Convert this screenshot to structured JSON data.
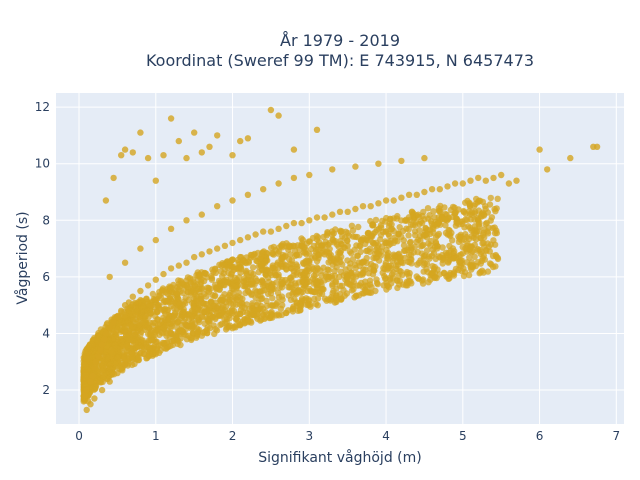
{
  "chart_data": {
    "type": "scatter",
    "title_line1": "År 1979 - 2019",
    "title_line2": "Koordinat (Sweref 99 TM): E 743915, N 6457473",
    "xlabel": "Signifikant våghöjd (m)",
    "ylabel": "Vågperiod (s)",
    "xlim": [
      -0.3,
      7.1
    ],
    "ylim": [
      0.8,
      12.5
    ],
    "x_ticks": [
      0,
      1,
      2,
      3,
      4,
      5,
      6,
      7
    ],
    "y_ticks": [
      2,
      4,
      6,
      8,
      10,
      12
    ],
    "grid": true,
    "marker_color": "#D4A520",
    "plot_bg": "#E5ECF6",
    "series": [
      {
        "x": [
          0.08,
          0.1,
          0.12,
          0.15,
          0.18,
          0.2,
          0.22,
          0.25,
          0.28,
          0.3,
          0.33,
          0.35,
          0.4,
          0.45,
          0.5,
          0.55,
          0.6,
          0.65,
          0.7,
          0.8,
          0.9,
          1.0,
          1.1,
          1.2,
          1.3,
          1.4,
          1.5,
          1.6,
          1.7,
          1.8,
          1.9,
          2.0,
          2.1,
          2.2,
          2.3,
          2.4,
          2.5,
          2.6,
          2.7,
          2.8,
          2.9,
          3.0,
          3.1,
          3.2,
          3.3,
          3.4,
          3.5,
          3.6,
          3.7,
          3.8,
          3.9,
          4.0,
          4.1,
          4.2,
          4.3,
          4.4,
          4.5,
          4.6,
          4.7,
          4.8,
          4.9,
          5.0,
          5.1,
          5.2,
          5.3,
          5.4,
          5.5,
          5.6,
          5.7,
          6.0,
          6.1,
          6.4,
          6.7,
          6.75,
          0.1,
          0.15,
          0.2,
          0.3,
          0.4,
          0.5,
          0.6,
          0.8,
          1.0,
          1.2,
          1.4,
          1.6,
          1.8,
          2.0,
          2.2,
          2.4,
          2.6,
          2.8,
          3.0,
          3.2,
          3.5,
          3.8,
          4.0,
          0.35,
          0.45,
          0.55,
          0.6,
          0.7,
          0.8,
          0.9,
          1.0,
          1.1,
          1.2,
          1.3,
          1.4,
          1.5,
          1.6,
          1.7,
          1.8,
          2.0,
          2.1,
          2.2,
          2.5,
          2.6,
          2.8,
          3.1,
          0.4,
          0.6,
          0.8,
          1.0,
          1.2,
          1.4,
          1.6,
          1.8,
          2.0,
          2.2,
          2.4,
          2.6,
          2.8,
          3.0,
          3.3,
          3.6,
          3.9,
          4.2,
          4.5
        ],
        "y": [
          1.8,
          2.0,
          1.6,
          2.3,
          2.5,
          2.8,
          3.0,
          3.2,
          3.4,
          3.6,
          3.8,
          4.0,
          4.2,
          4.4,
          4.6,
          4.8,
          5.0,
          5.1,
          5.3,
          5.5,
          5.7,
          5.9,
          6.1,
          6.3,
          6.4,
          6.5,
          6.7,
          6.8,
          6.9,
          7.0,
          7.1,
          7.2,
          7.3,
          7.4,
          7.5,
          7.6,
          7.6,
          7.7,
          7.8,
          7.9,
          7.9,
          8.0,
          8.1,
          8.1,
          8.2,
          8.3,
          8.3,
          8.4,
          8.5,
          8.5,
          8.6,
          8.7,
          8.7,
          8.8,
          8.9,
          8.9,
          9.0,
          9.1,
          9.1,
          9.2,
          9.3,
          9.3,
          9.4,
          9.5,
          9.4,
          9.5,
          9.6,
          9.3,
          9.4,
          10.5,
          9.8,
          10.2,
          10.6,
          10.6,
          1.3,
          1.5,
          1.7,
          2.0,
          2.3,
          2.6,
          2.9,
          3.3,
          3.7,
          4.0,
          4.3,
          4.6,
          4.9,
          5.2,
          5.5,
          5.8,
          6.0,
          6.2,
          6.5,
          6.8,
          7.1,
          7.4,
          7.6,
          8.7,
          9.5,
          10.3,
          10.5,
          10.4,
          11.1,
          10.2,
          9.4,
          10.3,
          11.6,
          10.8,
          10.2,
          11.1,
          10.4,
          10.6,
          11.0,
          10.3,
          10.8,
          10.9,
          11.9,
          11.7,
          10.5,
          11.2,
          6.0,
          6.5,
          7.0,
          7.3,
          7.7,
          8.0,
          8.2,
          8.5,
          8.7,
          8.9,
          9.1,
          9.3,
          9.5,
          9.6,
          9.8,
          9.9,
          10.0,
          10.1,
          10.2
        ]
      }
    ]
  }
}
